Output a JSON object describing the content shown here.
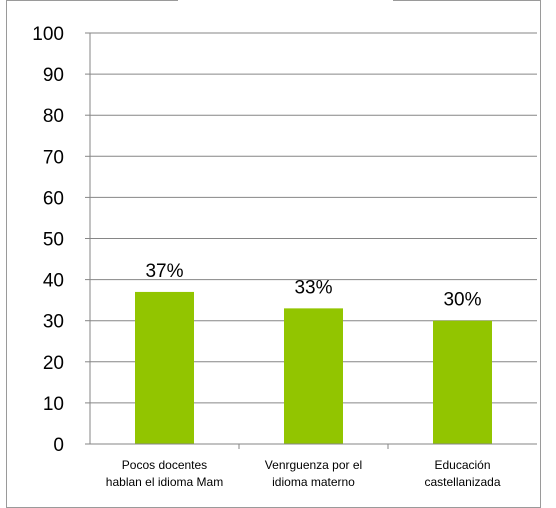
{
  "chart_data": {
    "type": "bar",
    "categories": [
      [
        "Pocos docentes",
        "hablan el idioma Mam"
      ],
      [
        "Venrguenza por el",
        "idioma materno"
      ],
      [
        "Educación",
        "castellanizada"
      ]
    ],
    "values": [
      37,
      33,
      30
    ],
    "data_labels": [
      "37%",
      "33%",
      "30%"
    ],
    "yticks": [
      "0",
      "10",
      "20",
      "30",
      "40",
      "50",
      "60",
      "70",
      "80",
      "90",
      "100"
    ],
    "ylim": [
      0,
      100
    ],
    "grid": true,
    "legend": "none",
    "bar_color": "#92c500"
  }
}
